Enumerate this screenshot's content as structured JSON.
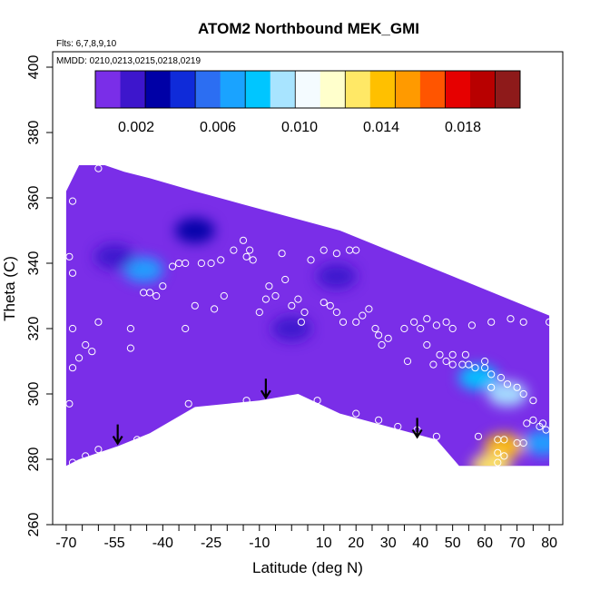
{
  "chart_data": {
    "type": "heatmap",
    "title": "ATOM2 Northbound MEK_GMI",
    "flights_note": "Flts: 6,7,8,9,10",
    "dates_note": "MMDD: 0210,0213,0215,0218,0219",
    "xlabel": "Latitude (deg N)",
    "ylabel": "Theta (C)",
    "xlim": [
      -70,
      80
    ],
    "ylim": [
      260,
      400
    ],
    "x_ticks": [
      "-70",
      "-55",
      "-40",
      "-25",
      "-10",
      "10",
      "20",
      "30",
      "40",
      "50",
      "60",
      "70",
      "80"
    ],
    "x_tick_values": [
      -70,
      -55,
      -40,
      -25,
      -10,
      10,
      20,
      30,
      40,
      50,
      60,
      70,
      80
    ],
    "y_ticks": [
      "260",
      "280",
      "300",
      "320",
      "340",
      "360",
      "380",
      "400"
    ],
    "y_tick_values": [
      260,
      280,
      300,
      320,
      340,
      360,
      380,
      400
    ],
    "colorbar": {
      "range": [
        0,
        0.0208
      ],
      "tick_labels": [
        "0.002",
        "0.006",
        "0.010",
        "0.014",
        "0.018"
      ],
      "tick_values": [
        0.002,
        0.006,
        0.01,
        0.014,
        0.018
      ],
      "colors": [
        "#7a2ee8",
        "#3d16cc",
        "#0000a6",
        "#0f2bd9",
        "#2c6ef2",
        "#1aa3ff",
        "#00c6ff",
        "#a8e4ff",
        "#f4fbff",
        "#ffffcc",
        "#ffe866",
        "#ffc000",
        "#ff9a00",
        "#ff5500",
        "#e60000",
        "#b80000",
        "#8e1a1a"
      ]
    },
    "arrows_latitude": [
      -54,
      -8,
      39
    ],
    "upper_boundary": [
      [
        -70,
        362
      ],
      [
        -66,
        370
      ],
      [
        -58,
        370
      ],
      [
        -52,
        368
      ],
      [
        -44,
        366
      ],
      [
        -30,
        362
      ],
      [
        -15,
        358
      ],
      [
        0,
        354
      ],
      [
        15,
        350
      ],
      [
        30,
        344
      ],
      [
        50,
        336
      ],
      [
        70,
        328
      ],
      [
        80,
        324
      ]
    ],
    "lower_boundary": [
      [
        -70,
        278
      ],
      [
        -66,
        280
      ],
      [
        -54,
        284
      ],
      [
        -44,
        288
      ],
      [
        -30,
        296
      ],
      [
        -10,
        298
      ],
      [
        2,
        300
      ],
      [
        15,
        294
      ],
      [
        30,
        290
      ],
      [
        45,
        286
      ],
      [
        52,
        278
      ],
      [
        80,
        278
      ]
    ],
    "enhancement_regions": [
      {
        "lat": -46,
        "theta": 338,
        "value": 0.0063
      },
      {
        "lat": -55,
        "theta": 342,
        "value": 0.0022
      },
      {
        "lat": -30,
        "theta": 350,
        "value": 0.0025
      },
      {
        "lat": 0,
        "theta": 320,
        "value": 0.0022
      },
      {
        "lat": 14,
        "theta": 336,
        "value": 0.0022
      },
      {
        "lat": 58,
        "theta": 305,
        "value": 0.0075
      },
      {
        "lat": 67,
        "theta": 300,
        "value": 0.0095
      },
      {
        "lat": 66,
        "theta": 284,
        "value": 0.0135
      },
      {
        "lat": 62,
        "theta": 278,
        "value": 0.0125
      },
      {
        "lat": 78,
        "theta": 285,
        "value": 0.0065
      }
    ],
    "sample_points": [
      [
        -68,
        279
      ],
      [
        -64,
        281
      ],
      [
        -60,
        283
      ],
      [
        -69,
        297
      ],
      [
        -68,
        308
      ],
      [
        -66,
        311
      ],
      [
        -64,
        315
      ],
      [
        -62,
        313
      ],
      [
        -68,
        320
      ],
      [
        -60,
        322
      ],
      [
        -68,
        337
      ],
      [
        -69,
        342
      ],
      [
        -68,
        359
      ],
      [
        -60,
        369
      ],
      [
        -48,
        286
      ],
      [
        -50,
        320
      ],
      [
        -50,
        314
      ],
      [
        -46,
        331
      ],
      [
        -44,
        331
      ],
      [
        -42,
        330
      ],
      [
        -40,
        333
      ],
      [
        -37,
        339
      ],
      [
        -35,
        340
      ],
      [
        -33,
        340
      ],
      [
        -28,
        340
      ],
      [
        -25,
        340
      ],
      [
        -22,
        341
      ],
      [
        -18,
        344
      ],
      [
        -15,
        347
      ],
      [
        -12,
        341
      ],
      [
        -24,
        326
      ],
      [
        -21,
        330
      ],
      [
        -30,
        327
      ],
      [
        -32,
        297
      ],
      [
        -33,
        320
      ],
      [
        -14,
        298
      ],
      [
        -7,
        333
      ],
      [
        -5,
        330
      ],
      [
        -8,
        329
      ],
      [
        -10,
        325
      ],
      [
        0,
        327
      ],
      [
        2,
        329
      ],
      [
        3,
        322
      ],
      [
        -2,
        335
      ],
      [
        4,
        325
      ],
      [
        10,
        344
      ],
      [
        14,
        343
      ],
      [
        18,
        344
      ],
      [
        20,
        344
      ],
      [
        6,
        341
      ],
      [
        10,
        328
      ],
      [
        12,
        327
      ],
      [
        14,
        325
      ],
      [
        16,
        322
      ],
      [
        20,
        322
      ],
      [
        22,
        324
      ],
      [
        24,
        326
      ],
      [
        26,
        320
      ],
      [
        27,
        318
      ],
      [
        28,
        315
      ],
      [
        30,
        317
      ],
      [
        35,
        320
      ],
      [
        38,
        322
      ],
      [
        40,
        320
      ],
      [
        42,
        323
      ],
      [
        45,
        321
      ],
      [
        48,
        322
      ],
      [
        50,
        320
      ],
      [
        56,
        321
      ],
      [
        62,
        322
      ],
      [
        68,
        323
      ],
      [
        72,
        322
      ],
      [
        80,
        322
      ],
      [
        8,
        298
      ],
      [
        20,
        294
      ],
      [
        27,
        292
      ],
      [
        33,
        290
      ],
      [
        39,
        289
      ],
      [
        45,
        287
      ],
      [
        50,
        312
      ],
      [
        53,
        309
      ],
      [
        55,
        309
      ],
      [
        57,
        308
      ],
      [
        60,
        308
      ],
      [
        62,
        306
      ],
      [
        65,
        305
      ],
      [
        67,
        303
      ],
      [
        70,
        302
      ],
      [
        72,
        300
      ],
      [
        75,
        298
      ],
      [
        73,
        291
      ],
      [
        75,
        292
      ],
      [
        77,
        290
      ],
      [
        78,
        291
      ],
      [
        79,
        289
      ],
      [
        58,
        287
      ],
      [
        64,
        286
      ],
      [
        66,
        286
      ],
      [
        70,
        285
      ],
      [
        72,
        285
      ],
      [
        48,
        310
      ],
      [
        50,
        309
      ],
      [
        54,
        312
      ],
      [
        46,
        312
      ],
      [
        44,
        309
      ],
      [
        42,
        315
      ],
      [
        36,
        310
      ],
      [
        60,
        310
      ],
      [
        62,
        302
      ],
      [
        64,
        282
      ],
      [
        66,
        281
      ],
      [
        64,
        279
      ],
      [
        -14,
        342
      ],
      [
        -3,
        343
      ],
      [
        -13,
        344
      ]
    ]
  }
}
